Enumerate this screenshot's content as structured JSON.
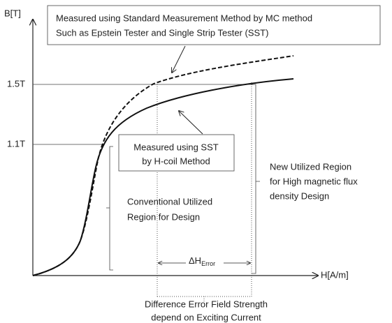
{
  "axes": {
    "y_label": "B[T]",
    "x_label": "H[A/m]",
    "y_marks": [
      "1.5T",
      "1.1T"
    ]
  },
  "top_box": {
    "lines": [
      "Measured using Standard Measurement Method  by MC method",
      "Such as Epstein  Tester and Single Strip Tester (SST)"
    ]
  },
  "middle_box": {
    "lines": [
      "Measured using SST",
      "by H-coil Method"
    ]
  },
  "conventional_region": {
    "lines": [
      "Conventional Utilized",
      "Region for Design"
    ]
  },
  "new_region": {
    "lines": [
      "New Utilized Region",
      "for High magnetic flux",
      "density Design"
    ]
  },
  "delta_h": {
    "symbol": "ΔH",
    "subscript": "Error"
  },
  "difference_note": {
    "lines": [
      "Difference Error Field Strength",
      "depend on Exciting Current"
    ]
  }
}
